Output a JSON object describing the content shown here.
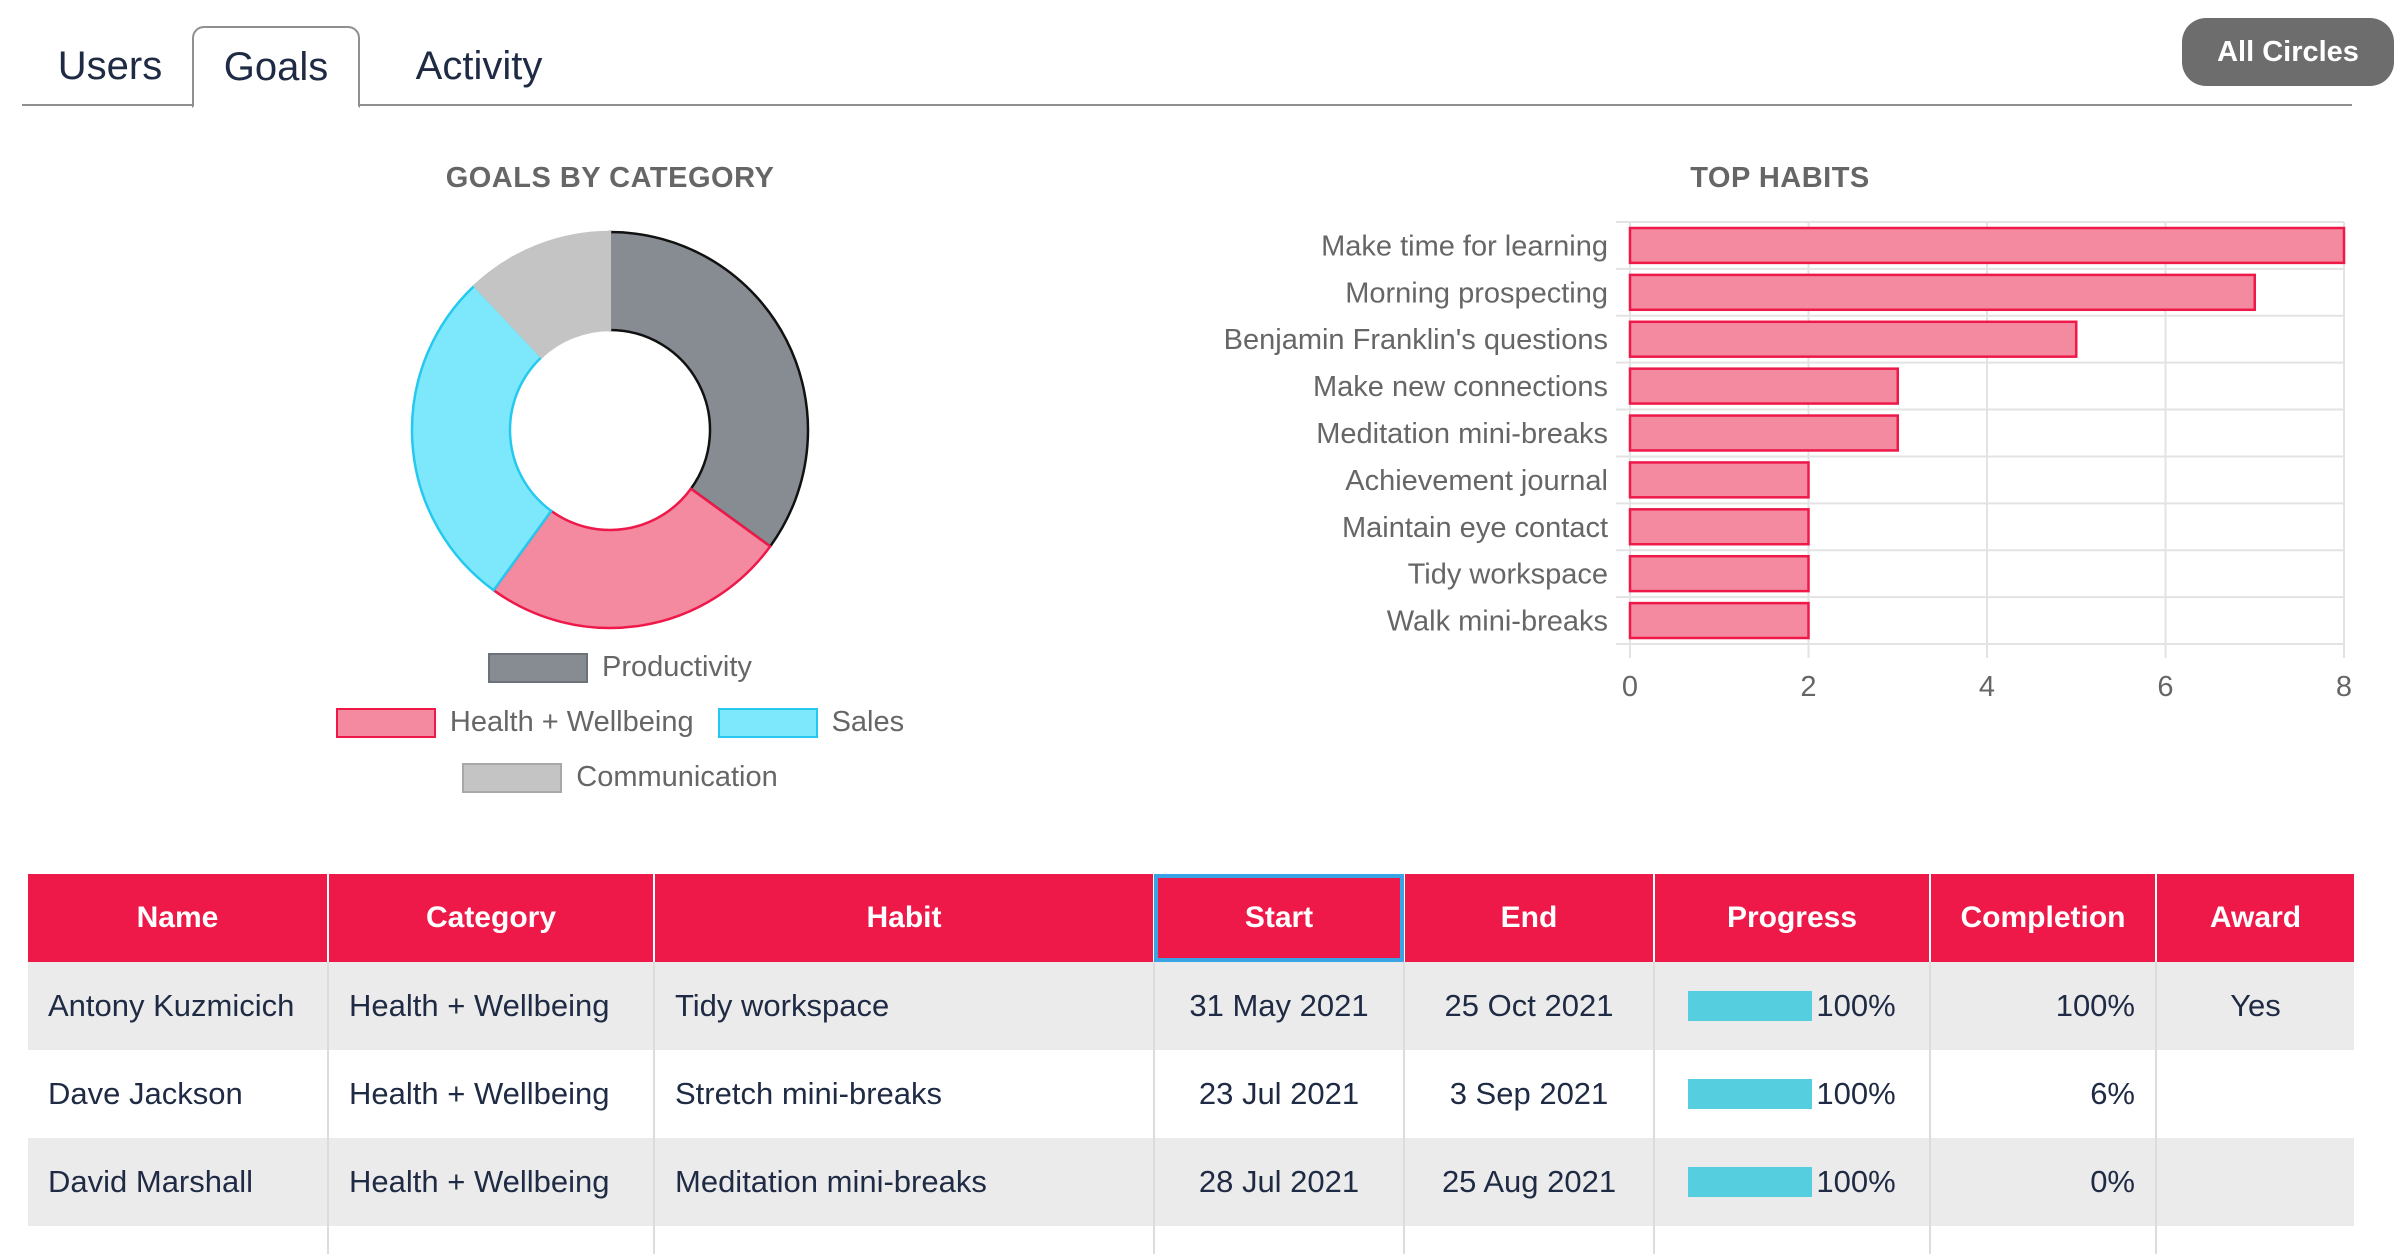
{
  "tabs": [
    {
      "label": "Users"
    },
    {
      "label": "Goals"
    },
    {
      "label": "Activity"
    }
  ],
  "active_tab": "Goals",
  "all_circles_button": "All Circles",
  "colors": {
    "accent": "#ee1849",
    "productivity": "#878c93",
    "health": "#f48aa0",
    "sales": "#7de8fc",
    "communication": "#c4c4c4",
    "progress_bar": "#55cfe0"
  },
  "chart_data": [
    {
      "type": "pie",
      "title": "GOALS BY CATEGORY",
      "donut": true,
      "categories": [
        "Productivity",
        "Health + Wellbeing",
        "Sales",
        "Communication"
      ],
      "values": [
        35,
        25,
        28,
        12
      ],
      "legend_position": "bottom"
    },
    {
      "type": "bar",
      "orientation": "horizontal",
      "title": "TOP HABITS",
      "categories": [
        "Make time for learning",
        "Morning prospecting",
        "Benjamin Franklin's questions",
        "Make new connections",
        "Meditation mini-breaks",
        "Achievement journal",
        "Maintain eye contact",
        "Tidy workspace",
        "Walk mini-breaks"
      ],
      "values": [
        8,
        7,
        5,
        3,
        3,
        2,
        2,
        2,
        2
      ],
      "xlim": [
        0,
        8
      ],
      "xticks": [
        0,
        2,
        4,
        6,
        8
      ],
      "grid": true
    }
  ],
  "table": {
    "headers": [
      "Name",
      "Category",
      "Habit",
      "Start",
      "End",
      "Progress",
      "Completion",
      "Award"
    ],
    "sorted_column": "Start",
    "rows": [
      {
        "name": "Antony Kuzmicich",
        "category": "Health + Wellbeing",
        "habit": "Tidy workspace",
        "start": "31 May 2021",
        "end": "25 Oct 2021",
        "progress": "100%",
        "progress_value": 1.0,
        "completion": "100%",
        "award": "Yes"
      },
      {
        "name": "Dave Jackson",
        "category": "Health + Wellbeing",
        "habit": "Stretch mini-breaks",
        "start": "23 Jul 2021",
        "end": "3 Sep 2021",
        "progress": "100%",
        "progress_value": 1.0,
        "completion": "6%",
        "award": ""
      },
      {
        "name": "David Marshall",
        "category": "Health + Wellbeing",
        "habit": "Meditation mini-breaks",
        "start": "28 Jul 2021",
        "end": "25 Aug 2021",
        "progress": "100%",
        "progress_value": 1.0,
        "completion": "0%",
        "award": ""
      }
    ]
  }
}
